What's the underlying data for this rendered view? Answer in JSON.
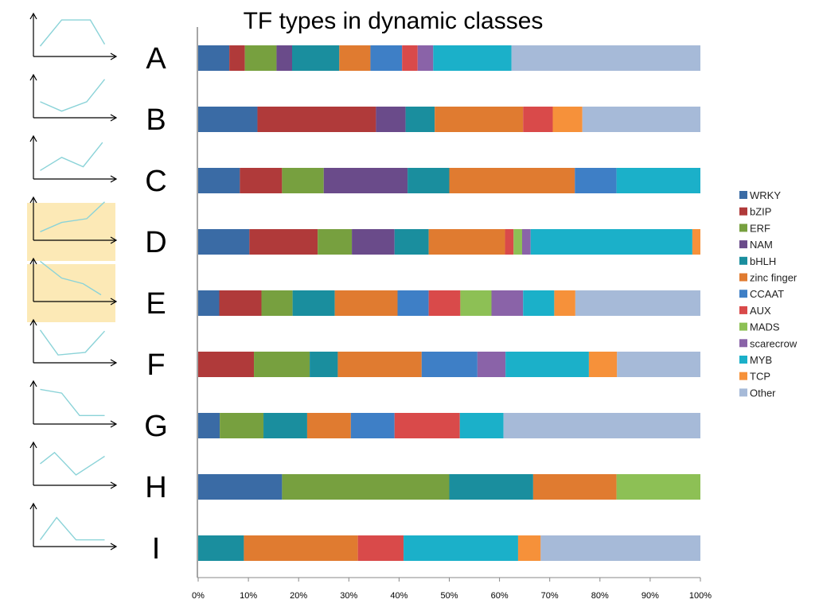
{
  "chart_data": {
    "type": "bar",
    "orientation": "horizontal",
    "stacked": "percent",
    "title": "TF types in dynamic classes",
    "xlabel": "",
    "ylabel": "",
    "xlim": [
      0,
      100
    ],
    "x_ticks": [
      "0%",
      "10%",
      "20%",
      "30%",
      "40%",
      "50%",
      "60%",
      "70%",
      "80%",
      "90%",
      "100%"
    ],
    "legend_position": "right",
    "grid": false,
    "categories": [
      "A",
      "B",
      "C",
      "D",
      "E",
      "F",
      "G",
      "H",
      "I"
    ],
    "series": [
      {
        "name": "WRKY",
        "color": "#3A6BA5",
        "values": [
          6.2,
          11.8,
          8.3,
          10.2,
          4.2,
          0,
          4.3,
          16.7,
          0
        ]
      },
      {
        "name": "bZIP",
        "color": "#B03A3A",
        "values": [
          3.1,
          23.6,
          8.4,
          13.6,
          8.4,
          11.1,
          0,
          0,
          0
        ]
      },
      {
        "name": "ERF",
        "color": "#77A03F",
        "values": [
          6.3,
          0,
          8.3,
          6.8,
          6.2,
          11.1,
          8.7,
          33.3,
          0
        ]
      },
      {
        "name": "NAM",
        "color": "#6A4B8A",
        "values": [
          3.1,
          5.9,
          16.7,
          8.5,
          0,
          0,
          0,
          0,
          0
        ]
      },
      {
        "name": "bHLH",
        "color": "#1A8E9E",
        "values": [
          9.4,
          5.8,
          8.3,
          6.8,
          8.4,
          5.6,
          8.7,
          16.7,
          9.1
        ]
      },
      {
        "name": "zinc finger",
        "color": "#E07B30",
        "values": [
          6.2,
          17.6,
          25.0,
          15.2,
          12.5,
          16.7,
          8.7,
          16.6,
          22.7
        ]
      },
      {
        "name": "CCAAT",
        "color": "#3E7FC6",
        "values": [
          6.3,
          0,
          8.3,
          0,
          6.2,
          11.1,
          8.7,
          0,
          0
        ]
      },
      {
        "name": "AUX",
        "color": "#D94A4A",
        "values": [
          3.1,
          5.9,
          0,
          1.7,
          6.3,
          0,
          13.0,
          0,
          9.1
        ]
      },
      {
        "name": "MADS",
        "color": "#8DC055",
        "values": [
          0,
          0,
          0,
          1.7,
          6.2,
          0,
          0,
          16.7,
          0
        ]
      },
      {
        "name": "scarecrow",
        "color": "#8A63A8",
        "values": [
          3.1,
          0,
          0,
          1.7,
          6.3,
          5.6,
          0,
          0,
          0
        ]
      },
      {
        "name": "MYB",
        "color": "#1BB0C9",
        "values": [
          15.6,
          0,
          16.7,
          32.2,
          6.2,
          16.6,
          8.7,
          0,
          22.8
        ]
      },
      {
        "name": "TCP",
        "color": "#F6913A",
        "values": [
          0,
          5.9,
          0,
          1.6,
          4.2,
          5.6,
          0,
          0,
          4.5
        ]
      },
      {
        "name": "Other",
        "color": "#A6BAD8",
        "values": [
          37.6,
          23.5,
          0,
          0,
          24.9,
          16.6,
          39.2,
          0,
          31.8
        ]
      }
    ],
    "profiles": {
      "highlighted": [
        "D",
        "E"
      ],
      "highlight_color": "#FCE9B6",
      "line_color": "#8BD3D8",
      "shapes": {
        "A": [
          [
            0.05,
            0.15
          ],
          [
            0.35,
            0.85
          ],
          [
            0.75,
            0.85
          ],
          [
            0.95,
            0.2
          ]
        ],
        "B": [
          [
            0.05,
            0.3
          ],
          [
            0.35,
            0.05
          ],
          [
            0.7,
            0.3
          ],
          [
            0.95,
            0.9
          ]
        ],
        "C": [
          [
            0.05,
            0.1
          ],
          [
            0.35,
            0.45
          ],
          [
            0.65,
            0.2
          ],
          [
            0.92,
            0.85
          ]
        ],
        "D": [
          [
            0.05,
            0.1
          ],
          [
            0.35,
            0.35
          ],
          [
            0.7,
            0.45
          ],
          [
            0.95,
            0.9
          ]
        ],
        "E": [
          [
            0.05,
            0.95
          ],
          [
            0.35,
            0.5
          ],
          [
            0.65,
            0.35
          ],
          [
            0.9,
            0.05
          ]
        ],
        "F": [
          [
            0.05,
            0.75
          ],
          [
            0.3,
            0.08
          ],
          [
            0.68,
            0.15
          ],
          [
            0.95,
            0.72
          ]
        ],
        "G": [
          [
            0.05,
            0.8
          ],
          [
            0.35,
            0.7
          ],
          [
            0.6,
            0.1
          ],
          [
            0.95,
            0.1
          ]
        ],
        "H": [
          [
            0.05,
            0.45
          ],
          [
            0.25,
            0.75
          ],
          [
            0.55,
            0.15
          ],
          [
            0.95,
            0.65
          ]
        ],
        "I": [
          [
            0.05,
            0.05
          ],
          [
            0.28,
            0.65
          ],
          [
            0.55,
            0.05
          ],
          [
            0.95,
            0.05
          ]
        ]
      }
    }
  }
}
